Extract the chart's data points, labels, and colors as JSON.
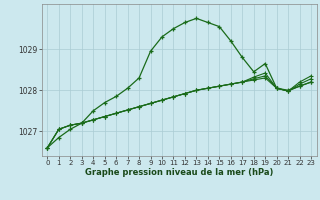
{
  "xlabel": "Graphe pression niveau de la mer (hPa)",
  "x_ticks": [
    0,
    1,
    2,
    3,
    4,
    5,
    6,
    7,
    8,
    9,
    10,
    11,
    12,
    13,
    14,
    15,
    16,
    17,
    18,
    19,
    20,
    21,
    22,
    23
  ],
  "ylim": [
    1026.4,
    1030.1
  ],
  "yticks": [
    1027,
    1028,
    1029
  ],
  "bg_color": "#cce8ee",
  "grid_color": "#aaccd4",
  "line_color": "#1a6b1a",
  "series": {
    "main": [
      1026.6,
      1026.85,
      1027.05,
      1027.2,
      1027.5,
      1027.7,
      1027.85,
      1028.05,
      1028.3,
      1028.95,
      1029.3,
      1029.5,
      1029.65,
      1029.75,
      1029.65,
      1029.55,
      1029.2,
      1028.8,
      1028.45,
      1028.65,
      1028.05,
      1028.0,
      1028.1,
      1028.2
    ],
    "s2": [
      1026.6,
      1027.05,
      1027.15,
      1027.2,
      1027.28,
      1027.36,
      1027.44,
      1027.52,
      1027.6,
      1027.68,
      1027.76,
      1027.84,
      1027.92,
      1028.0,
      1028.05,
      1028.1,
      1028.15,
      1028.2,
      1028.25,
      1028.3,
      1028.05,
      1027.98,
      1028.1,
      1028.2
    ],
    "s3": [
      1026.6,
      1027.05,
      1027.15,
      1027.2,
      1027.28,
      1027.36,
      1027.44,
      1027.52,
      1027.6,
      1027.68,
      1027.76,
      1027.84,
      1027.92,
      1028.0,
      1028.05,
      1028.1,
      1028.15,
      1028.2,
      1028.28,
      1028.35,
      1028.05,
      1027.98,
      1028.15,
      1028.28
    ],
    "s4": [
      1026.6,
      1027.05,
      1027.15,
      1027.2,
      1027.28,
      1027.36,
      1027.44,
      1027.52,
      1027.6,
      1027.68,
      1027.76,
      1027.84,
      1027.92,
      1028.0,
      1028.05,
      1028.1,
      1028.15,
      1028.2,
      1028.32,
      1028.42,
      1028.05,
      1027.98,
      1028.2,
      1028.35
    ]
  }
}
